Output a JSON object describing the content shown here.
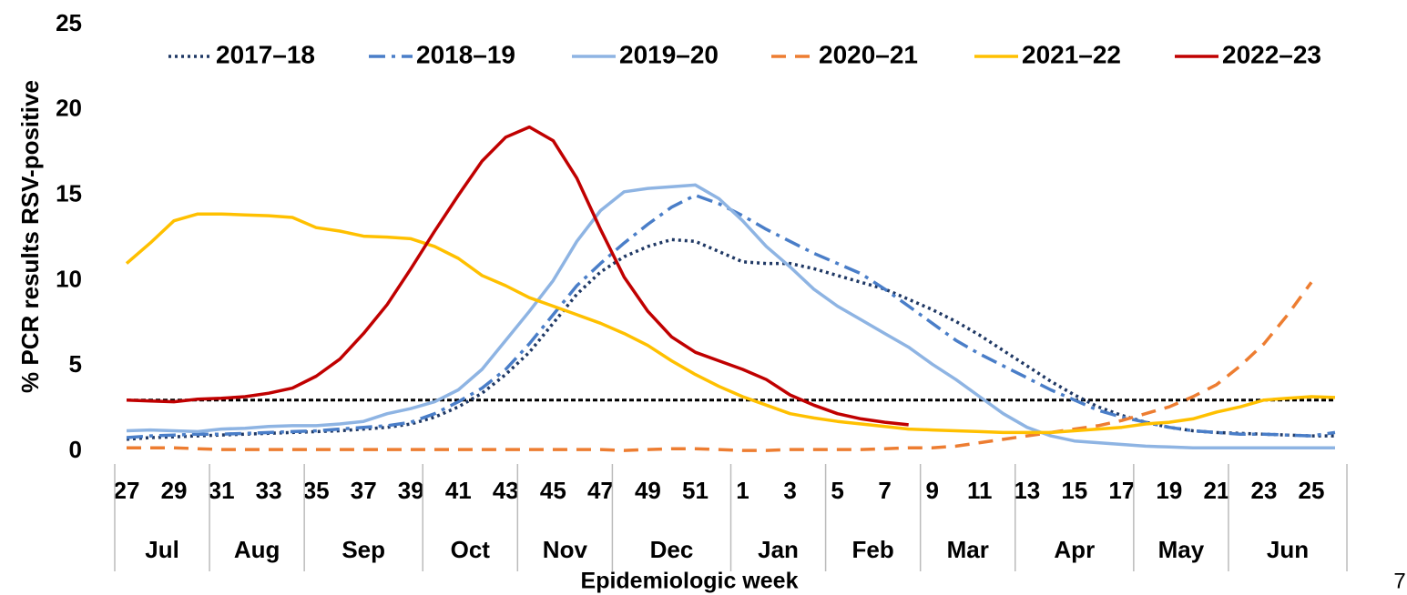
{
  "chart_data": {
    "type": "line",
    "y_label": "% PCR results RSV-positive",
    "x_label": "Epidemiologic week",
    "page_number": "7",
    "categories": [
      "27",
      null,
      "29",
      null,
      "31",
      null,
      "33",
      null,
      "35",
      null,
      "37",
      null,
      "39",
      null,
      "41",
      null,
      "43",
      null,
      "45",
      null,
      "47",
      null,
      "49",
      null,
      "51",
      null,
      "1",
      null,
      "3",
      null,
      "5",
      null,
      "7",
      null,
      "9",
      null,
      "11",
      null,
      "13",
      null,
      "15",
      null,
      "17",
      null,
      "19",
      null,
      "21",
      null,
      "23",
      null,
      "25",
      null
    ],
    "months": [
      "Jul",
      "Aug",
      "Sep",
      "Oct",
      "Nov",
      "Dec",
      "Jan",
      "Feb",
      "Mar",
      "Apr",
      "May",
      "Jun"
    ],
    "ylim": [
      0,
      25
    ],
    "yticks": [
      0,
      5,
      10,
      15,
      20,
      25
    ],
    "threshold": 3,
    "series": [
      {
        "name": "2017–18",
        "color": "#1f3864",
        "dash": "dotted",
        "values": [
          0.7,
          0.8,
          0.85,
          0.9,
          0.95,
          1.0,
          1.05,
          1.1,
          1.15,
          1.2,
          1.3,
          1.4,
          1.6,
          2.0,
          2.6,
          3.4,
          4.5,
          5.8,
          7.5,
          9.2,
          10.5,
          11.4,
          12.0,
          12.4,
          12.3,
          11.7,
          11.1,
          11.0,
          11.0,
          10.7,
          10.3,
          9.9,
          9.5,
          8.9,
          8.3,
          7.6,
          6.8,
          5.9,
          5.0,
          4.1,
          3.3,
          2.6,
          2.1,
          1.7,
          1.4,
          1.2,
          1.1,
          1.05,
          1.0,
          0.95,
          0.9,
          0.9
        ]
      },
      {
        "name": "2018–19",
        "color": "#4a7ec8",
        "dash": "dashdot",
        "values": [
          0.8,
          0.9,
          0.95,
          1.0,
          1.0,
          1.05,
          1.1,
          1.15,
          1.2,
          1.3,
          1.4,
          1.5,
          1.7,
          2.2,
          2.9,
          3.7,
          4.8,
          6.3,
          8.0,
          9.7,
          11.0,
          12.2,
          13.3,
          14.3,
          15.0,
          14.5,
          13.8,
          13.0,
          12.3,
          11.6,
          11.0,
          10.4,
          9.5,
          8.5,
          7.5,
          6.5,
          5.7,
          5.0,
          4.3,
          3.6,
          3.0,
          2.4,
          2.0,
          1.7,
          1.4,
          1.2,
          1.1,
          1.0,
          1.0,
          0.95,
          0.9,
          1.1
        ]
      },
      {
        "name": "2019–20",
        "color": "#8eb4e3",
        "dash": "solid",
        "values": [
          1.2,
          1.25,
          1.2,
          1.15,
          1.3,
          1.35,
          1.45,
          1.5,
          1.5,
          1.6,
          1.75,
          2.2,
          2.5,
          2.9,
          3.6,
          4.8,
          6.5,
          8.2,
          10.0,
          12.3,
          14.1,
          15.2,
          15.4,
          15.5,
          15.6,
          14.8,
          13.5,
          12.0,
          10.8,
          9.5,
          8.5,
          7.7,
          6.9,
          6.1,
          5.1,
          4.2,
          3.2,
          2.2,
          1.4,
          0.9,
          0.6,
          0.5,
          0.4,
          0.3,
          0.25,
          0.2,
          0.2,
          0.2,
          0.2,
          0.2,
          0.2,
          0.2
        ]
      },
      {
        "name": "2020–21",
        "color": "#ed7d31",
        "dash": "dashed",
        "values": [
          0.2,
          0.2,
          0.2,
          0.15,
          0.1,
          0.1,
          0.1,
          0.1,
          0.1,
          0.1,
          0.1,
          0.1,
          0.1,
          0.1,
          0.1,
          0.1,
          0.1,
          0.1,
          0.1,
          0.1,
          0.1,
          0.05,
          0.1,
          0.15,
          0.15,
          0.1,
          0.05,
          0.05,
          0.1,
          0.1,
          0.1,
          0.1,
          0.15,
          0.2,
          0.2,
          0.3,
          0.5,
          0.7,
          0.9,
          1.1,
          1.3,
          1.5,
          1.8,
          2.2,
          2.6,
          3.2,
          3.9,
          5.0,
          6.3,
          8.0,
          9.9,
          null
        ]
      },
      {
        "name": "2021–22",
        "color": "#ffc000",
        "dash": "solid",
        "values": [
          11.0,
          12.2,
          13.5,
          13.9,
          13.9,
          13.85,
          13.8,
          13.7,
          13.1,
          12.9,
          12.6,
          12.55,
          12.45,
          12.0,
          11.3,
          10.3,
          9.7,
          9.0,
          8.5,
          8.0,
          7.5,
          6.9,
          6.2,
          5.3,
          4.5,
          3.8,
          3.2,
          2.7,
          2.2,
          1.95,
          1.75,
          1.6,
          1.45,
          1.3,
          1.25,
          1.2,
          1.15,
          1.1,
          1.1,
          1.1,
          1.2,
          1.3,
          1.4,
          1.6,
          1.7,
          1.9,
          2.3,
          2.6,
          3.0,
          3.1,
          3.2,
          3.15
        ]
      },
      {
        "name": "2022–23",
        "color": "#c00000",
        "dash": "solid",
        "values": [
          3.0,
          2.95,
          2.9,
          3.05,
          3.1,
          3.2,
          3.4,
          3.7,
          4.4,
          5.4,
          6.9,
          8.6,
          10.7,
          12.9,
          15.0,
          17.0,
          18.4,
          19.0,
          18.2,
          16.0,
          13.0,
          10.2,
          8.2,
          6.7,
          5.8,
          5.3,
          4.8,
          4.2,
          3.3,
          2.7,
          2.2,
          1.9,
          1.7,
          1.55,
          null,
          null,
          null,
          null,
          null,
          null,
          null,
          null,
          null,
          null,
          null,
          null,
          null,
          null,
          null,
          null,
          null,
          null
        ]
      }
    ]
  }
}
